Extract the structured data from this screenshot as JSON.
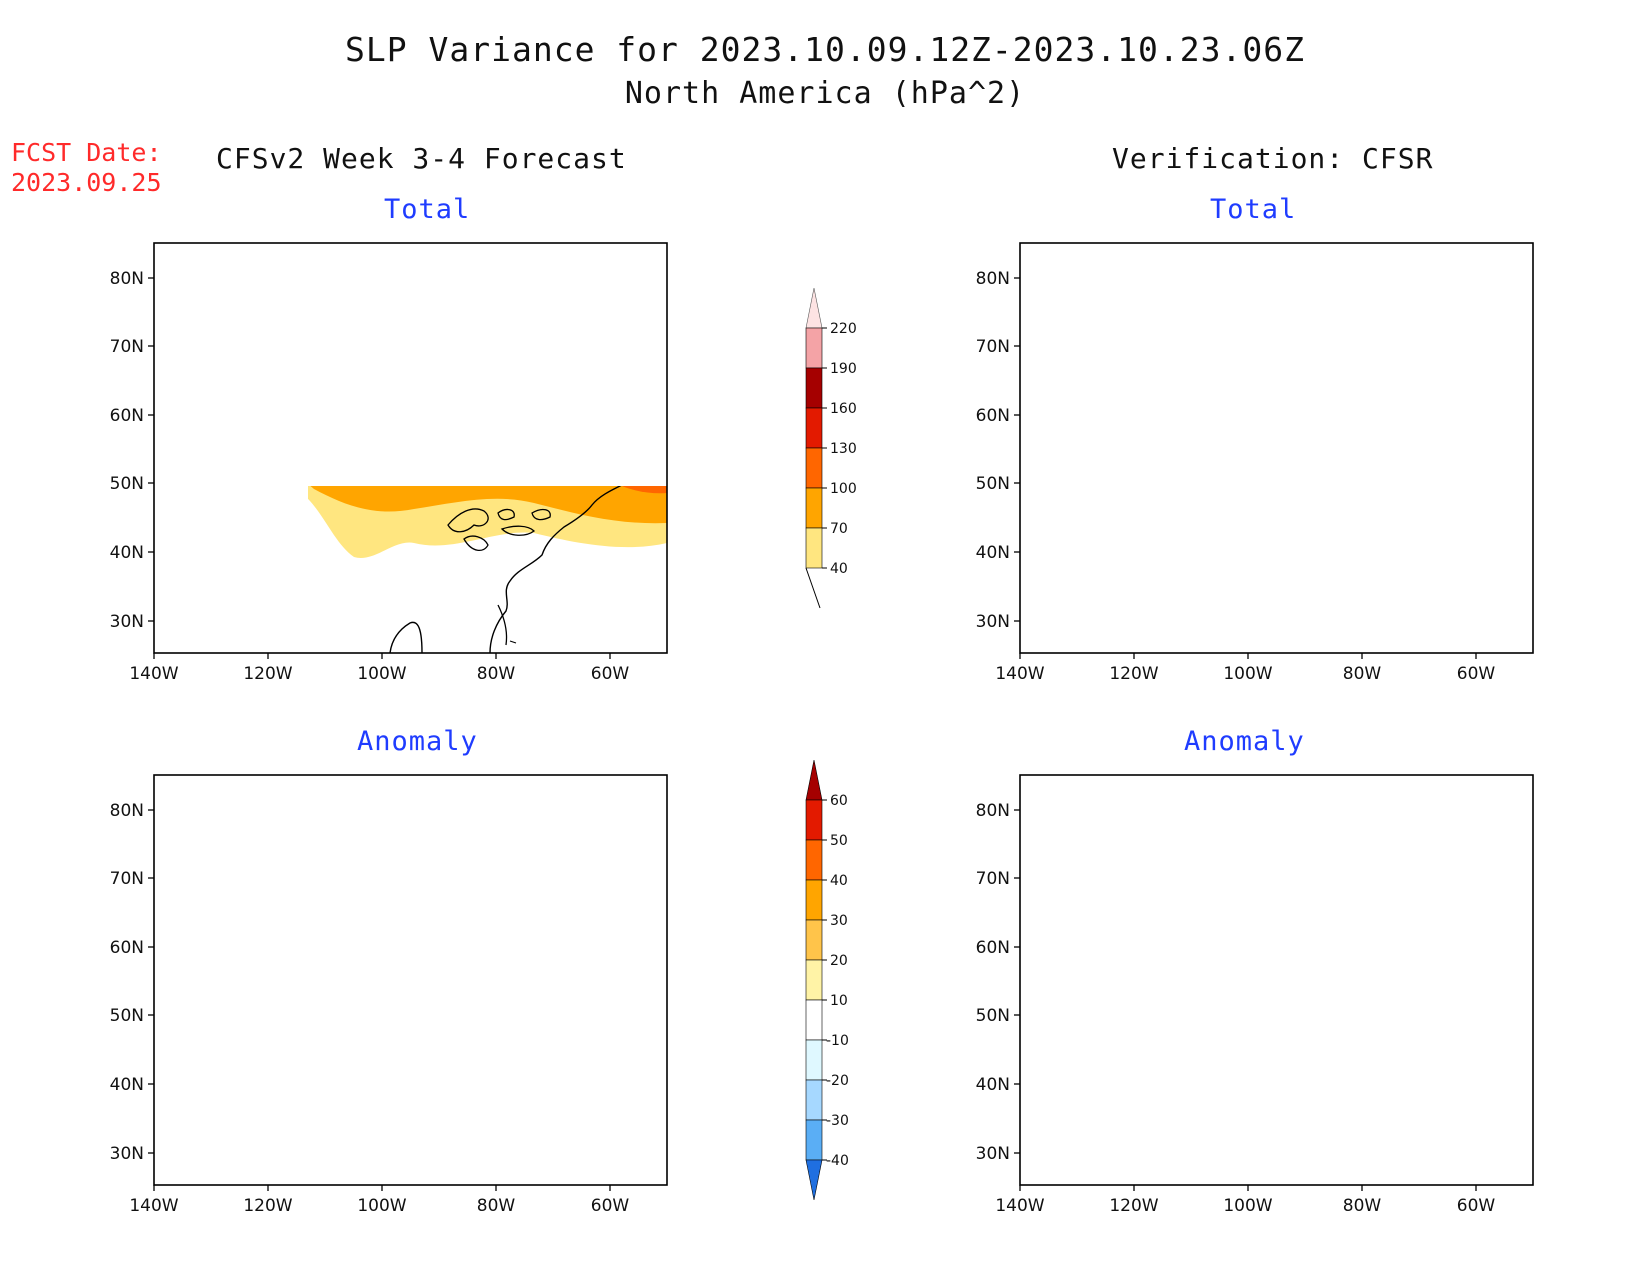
{
  "title": {
    "line1": "SLP Variance for 2023.10.09.12Z-2023.10.23.06Z",
    "line2": "North America (hPa^2)"
  },
  "fcst_date": {
    "label": "FCST Date:",
    "value": "2023.09.25"
  },
  "columns": {
    "left": "CFSv2 Week 3-4 Forecast",
    "right": "Verification: CFSR"
  },
  "panel_titles": {
    "total": "Total",
    "anomaly": "Anomaly"
  },
  "axes": {
    "lat_labels": [
      "80N",
      "70N",
      "60N",
      "50N",
      "40N",
      "30N"
    ],
    "lon_labels": [
      "140W",
      "120W",
      "100W",
      "80W",
      "60W"
    ]
  },
  "colorbars": {
    "total": {
      "labels": [
        "220",
        "190",
        "160",
        "130",
        "100",
        "70",
        "40"
      ],
      "colors": [
        "#fde3e3",
        "#f4a3a6",
        "#a50000",
        "#e31a00",
        "#ff6600",
        "#ffa500",
        "#ffe680"
      ]
    },
    "anomaly": {
      "labels": [
        "60",
        "50",
        "40",
        "30",
        "20",
        "10",
        "-10",
        "-20",
        "-30",
        "-40"
      ],
      "colors": [
        "#a50000",
        "#e31a00",
        "#ff6600",
        "#ffa500",
        "#ffc44a",
        "#fff3a6",
        "#ffffff",
        "#dff8ff",
        "#a6d8ff",
        "#5aaef5",
        "#1f6fe0"
      ]
    }
  }
}
